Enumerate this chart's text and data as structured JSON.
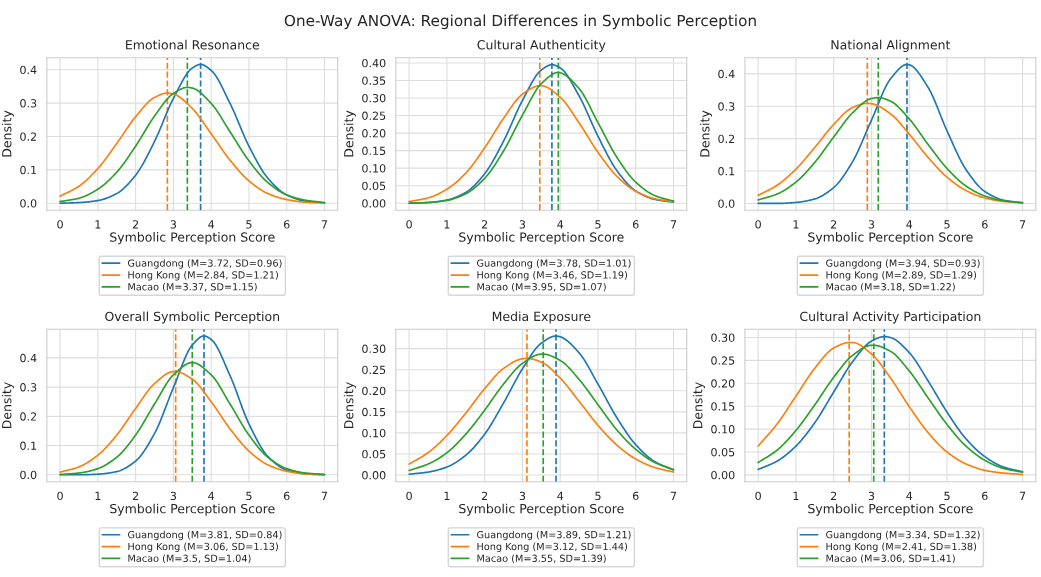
{
  "chart_data": [
    {
      "type": "line",
      "title": "Emotional Resonance",
      "xlabel": "Symbolic Perception Score",
      "ylabel": "Density",
      "annotations": [
        "One-Way ANOVA: Regional Differences in Symbolic Perception"
      ],
      "xlim": [
        -0.35,
        7.35
      ],
      "xticks": [
        0,
        1,
        2,
        3,
        4,
        5,
        6,
        7
      ],
      "ylim": [
        -0.021,
        0.436
      ],
      "yticks": [
        {
          "value": 0,
          "label": "0.0"
        },
        0.1,
        0.2,
        0.3,
        0.4
      ],
      "grid": true,
      "legend": "bottom",
      "line_style": "solid",
      "series": [
        {
          "name": "Guangdong (M=3.72, SD=0.96)",
          "color": "#1f77b4",
          "x": [
            0,
            0.5,
            1,
            1.5,
            2,
            2.5,
            3,
            3.5,
            3.72,
            4,
            4.5,
            5,
            5.5,
            6,
            6.5,
            7
          ],
          "values": [
            0.0,
            0.002,
            0.008,
            0.029,
            0.084,
            0.185,
            0.314,
            0.405,
            0.416,
            0.398,
            0.299,
            0.171,
            0.075,
            0.025,
            0.006,
            0.001
          ]
        },
        {
          "name": "Hong Kong (M=2.84, SD=1.21)",
          "color": "#ff7f0e",
          "x": [
            0,
            0.5,
            1,
            1.5,
            2,
            2.5,
            2.84,
            3,
            3.5,
            4,
            4.5,
            5,
            5.5,
            6,
            6.5,
            7
          ],
          "values": [
            0.021,
            0.051,
            0.104,
            0.179,
            0.259,
            0.317,
            0.33,
            0.327,
            0.284,
            0.208,
            0.129,
            0.067,
            0.029,
            0.011,
            0.003,
            0.001
          ]
        },
        {
          "name": "Macao (M=3.37, SD=1.15)",
          "color": "#2ca02c",
          "x": [
            0,
            0.5,
            1,
            1.5,
            2,
            2.5,
            3,
            3.37,
            3.5,
            4,
            4.5,
            5,
            5.5,
            6,
            6.5,
            7
          ],
          "values": [
            0.005,
            0.015,
            0.042,
            0.093,
            0.171,
            0.261,
            0.329,
            0.347,
            0.345,
            0.299,
            0.214,
            0.127,
            0.062,
            0.025,
            0.009,
            0.002
          ]
        }
      ],
      "ref_lines": [
        {
          "axis": "x",
          "value": 3.72,
          "color": "#1f77b4",
          "line_style": "dashed"
        },
        {
          "axis": "x",
          "value": 2.84,
          "color": "#ff7f0e",
          "line_style": "dashed"
        },
        {
          "axis": "x",
          "value": 3.37,
          "color": "#2ca02c",
          "line_style": "dashed"
        }
      ]
    },
    {
      "type": "line",
      "title": "Cultural Authenticity",
      "xlabel": "Symbolic Perception Score",
      "ylabel": "Density",
      "xlim": [
        -0.35,
        7.35
      ],
      "xticks": [
        0,
        1,
        2,
        3,
        4,
        5,
        6,
        7
      ],
      "ylim": [
        -0.02,
        0.415
      ],
      "yticks": [
        {
          "value": 0,
          "label": "0.00"
        },
        0.05,
        {
          "value": 0.1,
          "label": "0.10"
        },
        0.15,
        {
          "value": 0.2,
          "label": "0.20"
        },
        0.25,
        {
          "value": 0.3,
          "label": "0.30"
        },
        0.35,
        {
          "value": 0.4,
          "label": "0.40"
        }
      ],
      "grid": true,
      "legend": "bottom",
      "line_style": "solid",
      "series": [
        {
          "name": "Guangdong (M=3.78, SD=1.01)",
          "color": "#1f77b4",
          "x": [
            0,
            0.5,
            1,
            1.5,
            2,
            2.5,
            3,
            3.5,
            3.78,
            4,
            4.5,
            5,
            5.5,
            6,
            6.5,
            7
          ],
          "values": [
            0.0,
            0.002,
            0.009,
            0.031,
            0.084,
            0.177,
            0.293,
            0.38,
            0.395,
            0.386,
            0.306,
            0.191,
            0.093,
            0.035,
            0.011,
            0.003
          ]
        },
        {
          "name": "Hong Kong (M=3.46, SD=1.19)",
          "color": "#ff7f0e",
          "x": [
            0,
            0.5,
            1,
            1.5,
            2,
            2.5,
            3,
            3.46,
            3.5,
            4,
            4.5,
            5,
            5.5,
            6,
            6.5,
            7
          ],
          "values": [
            0.005,
            0.015,
            0.04,
            0.086,
            0.158,
            0.242,
            0.311,
            0.335,
            0.335,
            0.302,
            0.229,
            0.145,
            0.077,
            0.034,
            0.013,
            0.004
          ]
        },
        {
          "name": "Macao (M=3.95, SD=1.07)",
          "color": "#2ca02c",
          "x": [
            0,
            0.5,
            1,
            1.5,
            2,
            2.5,
            3,
            3.5,
            3.95,
            4,
            4.5,
            5,
            5.5,
            6,
            6.5,
            7
          ],
          "values": [
            0.0,
            0.002,
            0.008,
            0.027,
            0.071,
            0.149,
            0.251,
            0.341,
            0.373,
            0.372,
            0.327,
            0.23,
            0.131,
            0.06,
            0.022,
            0.006
          ]
        }
      ],
      "ref_lines": [
        {
          "axis": "x",
          "value": 3.78,
          "color": "#1f77b4",
          "line_style": "dashed"
        },
        {
          "axis": "x",
          "value": 3.46,
          "color": "#ff7f0e",
          "line_style": "dashed"
        },
        {
          "axis": "x",
          "value": 3.95,
          "color": "#2ca02c",
          "line_style": "dashed"
        }
      ]
    },
    {
      "type": "line",
      "title": "National Alignment",
      "xlabel": "Symbolic Perception Score",
      "ylabel": "Density",
      "xlim": [
        -0.35,
        7.35
      ],
      "xticks": [
        0,
        1,
        2,
        3,
        4,
        5,
        6,
        7
      ],
      "ylim": [
        -0.021,
        0.45
      ],
      "yticks": [
        {
          "value": 0,
          "label": "0.0"
        },
        0.1,
        0.2,
        0.3,
        0.4
      ],
      "grid": true,
      "legend": "bottom",
      "line_style": "solid",
      "series": [
        {
          "name": "Guangdong (M=3.94, SD=0.93)",
          "color": "#1f77b4",
          "x": [
            0,
            0.5,
            1,
            1.5,
            2,
            2.5,
            3,
            3.5,
            3.94,
            4,
            4.5,
            5,
            5.5,
            6,
            6.5,
            7
          ],
          "values": [
            0.0,
            0.0,
            0.003,
            0.014,
            0.049,
            0.129,
            0.257,
            0.384,
            0.429,
            0.428,
            0.358,
            0.224,
            0.105,
            0.037,
            0.01,
            0.002
          ]
        },
        {
          "name": "Hong Kong (M=2.89, SD=1.29)",
          "color": "#ff7f0e",
          "x": [
            0,
            0.5,
            1,
            1.5,
            2,
            2.5,
            2.89,
            3,
            3.5,
            4,
            4.5,
            5,
            5.5,
            6,
            6.5,
            7
          ],
          "values": [
            0.025,
            0.056,
            0.106,
            0.173,
            0.244,
            0.296,
            0.309,
            0.308,
            0.277,
            0.214,
            0.142,
            0.081,
            0.04,
            0.017,
            0.006,
            0.002
          ]
        },
        {
          "name": "Macao (M=3.18, SD=1.22)",
          "color": "#2ca02c",
          "x": [
            0,
            0.5,
            1,
            1.5,
            2,
            2.5,
            3,
            3.18,
            3.5,
            4,
            4.5,
            5,
            5.5,
            6,
            6.5,
            7
          ],
          "values": [
            0.011,
            0.029,
            0.066,
            0.127,
            0.205,
            0.28,
            0.324,
            0.327,
            0.316,
            0.261,
            0.182,
            0.108,
            0.054,
            0.023,
            0.008,
            0.002
          ]
        }
      ],
      "ref_lines": [
        {
          "axis": "x",
          "value": 3.94,
          "color": "#1f77b4",
          "line_style": "dashed"
        },
        {
          "axis": "x",
          "value": 2.89,
          "color": "#ff7f0e",
          "line_style": "dashed"
        },
        {
          "axis": "x",
          "value": 3.18,
          "color": "#2ca02c",
          "line_style": "dashed"
        }
      ]
    },
    {
      "type": "line",
      "title": "Overall Symbolic Perception",
      "xlabel": "Symbolic Perception Score",
      "ylabel": "Density",
      "xlim": [
        -0.35,
        7.35
      ],
      "xticks": [
        0,
        1,
        2,
        3,
        4,
        5,
        6,
        7
      ],
      "ylim": [
        -0.024,
        0.498
      ],
      "yticks": [
        {
          "value": 0,
          "label": "0.0"
        },
        0.1,
        0.2,
        0.3,
        0.4
      ],
      "grid": true,
      "legend": "bottom",
      "line_style": "solid",
      "series": [
        {
          "name": "Guangdong (M=3.81, SD=0.84)",
          "color": "#1f77b4",
          "x": [
            0,
            0.5,
            1,
            1.5,
            2,
            2.5,
            3,
            3.5,
            3.81,
            4,
            4.5,
            5,
            5.5,
            6,
            6.5,
            7
          ],
          "values": [
            0.0,
            0.0,
            0.002,
            0.011,
            0.047,
            0.141,
            0.298,
            0.444,
            0.475,
            0.463,
            0.339,
            0.174,
            0.063,
            0.016,
            0.003,
            0.0
          ]
        },
        {
          "name": "Hong Kong (M=3.06, SD=1.13)",
          "color": "#ff7f0e",
          "x": [
            0,
            0.5,
            1,
            1.5,
            2,
            2.5,
            3,
            3.06,
            3.5,
            4,
            4.5,
            5,
            5.5,
            6,
            6.5,
            7
          ],
          "values": [
            0.009,
            0.027,
            0.067,
            0.136,
            0.227,
            0.312,
            0.353,
            0.353,
            0.327,
            0.25,
            0.157,
            0.081,
            0.034,
            0.012,
            0.003,
            0.001
          ]
        },
        {
          "name": "Macao (M=3.5, SD=1.04)",
          "color": "#2ca02c",
          "x": [
            0,
            0.5,
            1,
            1.5,
            2,
            2.5,
            3,
            3.5,
            4,
            4.5,
            5,
            5.5,
            6,
            6.5,
            7
          ],
          "values": [
            0.001,
            0.006,
            0.021,
            0.06,
            0.136,
            0.242,
            0.342,
            0.384,
            0.342,
            0.242,
            0.136,
            0.06,
            0.021,
            0.006,
            0.001
          ]
        }
      ],
      "ref_lines": [
        {
          "axis": "x",
          "value": 3.81,
          "color": "#1f77b4",
          "line_style": "dashed"
        },
        {
          "axis": "x",
          "value": 3.06,
          "color": "#ff7f0e",
          "line_style": "dashed"
        },
        {
          "axis": "x",
          "value": 3.5,
          "color": "#2ca02c",
          "line_style": "dashed"
        }
      ]
    },
    {
      "type": "line",
      "title": "Media Exposure",
      "xlabel": "Symbolic Perception Score",
      "ylabel": "Density",
      "xlim": [
        -0.35,
        7.35
      ],
      "xticks": [
        0,
        1,
        2,
        3,
        4,
        5,
        6,
        7
      ],
      "ylim": [
        -0.016,
        0.346
      ],
      "yticks": [
        {
          "value": 0,
          "label": "0.00"
        },
        0.05,
        {
          "value": 0.1,
          "label": "0.10"
        },
        0.15,
        {
          "value": 0.2,
          "label": "0.20"
        },
        0.25,
        {
          "value": 0.3,
          "label": "0.30"
        }
      ],
      "grid": true,
      "legend": "bottom",
      "line_style": "solid",
      "series": [
        {
          "name": "Guangdong (M=3.89, SD=1.21)",
          "color": "#1f77b4",
          "x": [
            0,
            0.5,
            1,
            1.5,
            2,
            2.5,
            3,
            3.5,
            3.89,
            4,
            4.5,
            5,
            5.5,
            6,
            6.5,
            7
          ],
          "values": [
            0.002,
            0.007,
            0.019,
            0.047,
            0.097,
            0.171,
            0.252,
            0.313,
            0.33,
            0.328,
            0.29,
            0.216,
            0.136,
            0.072,
            0.032,
            0.012
          ]
        },
        {
          "name": "Hong Kong (M=3.12, SD=1.44)",
          "color": "#ff7f0e",
          "x": [
            0,
            0.5,
            1,
            1.5,
            2,
            2.5,
            3,
            3.12,
            3.5,
            4,
            4.5,
            5,
            5.5,
            6,
            6.5,
            7
          ],
          "values": [
            0.026,
            0.053,
            0.094,
            0.147,
            0.205,
            0.253,
            0.276,
            0.277,
            0.268,
            0.23,
            0.175,
            0.118,
            0.071,
            0.038,
            0.018,
            0.007
          ]
        },
        {
          "name": "Macao (M=3.55, SD=1.39)",
          "color": "#2ca02c",
          "x": [
            0,
            0.5,
            1,
            1.5,
            2,
            2.5,
            3,
            3.5,
            3.55,
            4,
            4.5,
            5,
            5.5,
            6,
            6.5,
            7
          ],
          "values": [
            0.011,
            0.026,
            0.053,
            0.097,
            0.154,
            0.216,
            0.265,
            0.287,
            0.287,
            0.272,
            0.227,
            0.167,
            0.107,
            0.061,
            0.03,
            0.013
          ]
        }
      ],
      "ref_lines": [
        {
          "axis": "x",
          "value": 3.89,
          "color": "#1f77b4",
          "line_style": "dashed"
        },
        {
          "axis": "x",
          "value": 3.12,
          "color": "#ff7f0e",
          "line_style": "dashed"
        },
        {
          "axis": "x",
          "value": 3.55,
          "color": "#2ca02c",
          "line_style": "dashed"
        }
      ]
    },
    {
      "type": "line",
      "title": "Cultural Activity Participation",
      "xlabel": "Symbolic Perception Score",
      "ylabel": "Density",
      "xlim": [
        -0.35,
        7.35
      ],
      "xticks": [
        0,
        1,
        2,
        3,
        4,
        5,
        6,
        7
      ],
      "ylim": [
        -0.015,
        0.318
      ],
      "yticks": [
        {
          "value": 0,
          "label": "0.00"
        },
        0.05,
        {
          "value": 0.1,
          "label": "0.10"
        },
        0.15,
        {
          "value": 0.2,
          "label": "0.20"
        },
        0.25,
        {
          "value": 0.3,
          "label": "0.30"
        }
      ],
      "grid": true,
      "legend": "bottom",
      "line_style": "solid",
      "series": [
        {
          "name": "Guangdong (M=3.34, SD=1.32)",
          "color": "#1f77b4",
          "x": [
            0,
            0.5,
            1,
            1.5,
            2,
            2.5,
            3,
            3.34,
            3.5,
            4,
            4.5,
            5,
            5.5,
            6,
            6.5,
            7
          ],
          "values": [
            0.012,
            0.03,
            0.063,
            0.114,
            0.181,
            0.247,
            0.292,
            0.302,
            0.3,
            0.267,
            0.205,
            0.137,
            0.079,
            0.04,
            0.017,
            0.007
          ]
        },
        {
          "name": "Hong Kong (M=2.41, SD=1.38)",
          "color": "#ff7f0e",
          "x": [
            0,
            0.5,
            1,
            1.5,
            2,
            2.41,
            2.5,
            3,
            3.5,
            4,
            4.5,
            5,
            5.5,
            6,
            6.5,
            7
          ],
          "values": [
            0.063,
            0.111,
            0.172,
            0.233,
            0.277,
            0.289,
            0.289,
            0.264,
            0.212,
            0.149,
            0.092,
            0.05,
            0.024,
            0.01,
            0.004,
            0.001
          ]
        },
        {
          "name": "Macao (M=3.06, SD=1.41)",
          "color": "#2ca02c",
          "x": [
            0,
            0.5,
            1,
            1.5,
            2,
            2.5,
            3,
            3.06,
            3.5,
            4,
            4.5,
            5,
            5.5,
            6,
            6.5,
            7
          ],
          "values": [
            0.027,
            0.054,
            0.097,
            0.153,
            0.213,
            0.261,
            0.283,
            0.283,
            0.27,
            0.227,
            0.168,
            0.11,
            0.063,
            0.032,
            0.014,
            0.006
          ]
        }
      ],
      "ref_lines": [
        {
          "axis": "x",
          "value": 3.34,
          "color": "#1f77b4",
          "line_style": "dashed"
        },
        {
          "axis": "x",
          "value": 2.41,
          "color": "#ff7f0e",
          "line_style": "dashed"
        },
        {
          "axis": "x",
          "value": 3.06,
          "color": "#2ca02c",
          "line_style": "dashed"
        }
      ]
    }
  ]
}
